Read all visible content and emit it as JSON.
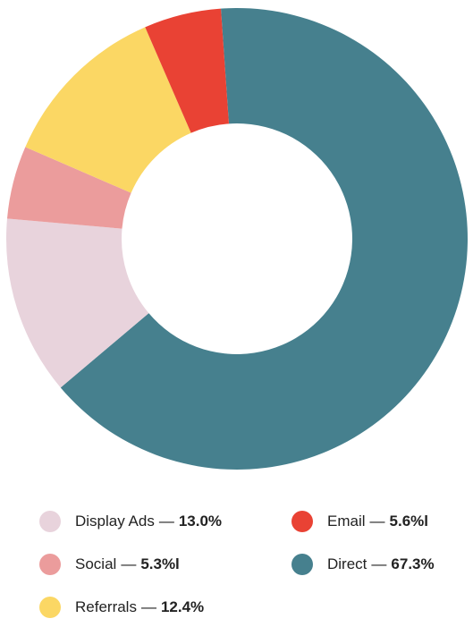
{
  "chart_data": {
    "type": "pie",
    "variant": "donut",
    "title": "",
    "start_category": "Direct",
    "direction": "clockwise",
    "slices": [
      {
        "label": "Direct",
        "value": 67.3,
        "display": "67.3%",
        "color": "#46808e"
      },
      {
        "label": "Display Ads",
        "value": 13.0,
        "display": "13.0%",
        "color": "#e8d3dc"
      },
      {
        "label": "Social",
        "value": 5.3,
        "display": "5.3%l",
        "color": "#eb9c9c"
      },
      {
        "label": "Referrals",
        "value": 12.4,
        "display": "12.4%",
        "color": "#fbd764"
      },
      {
        "label": "Email",
        "value": 5.6,
        "display": "5.6%l",
        "color": "#e94234"
      }
    ],
    "legend_order": [
      "Display Ads",
      "Email",
      "Social",
      "Direct",
      "Referrals"
    ],
    "legend": {
      "placement": "bottom",
      "columns": 2,
      "separator": "—"
    }
  }
}
